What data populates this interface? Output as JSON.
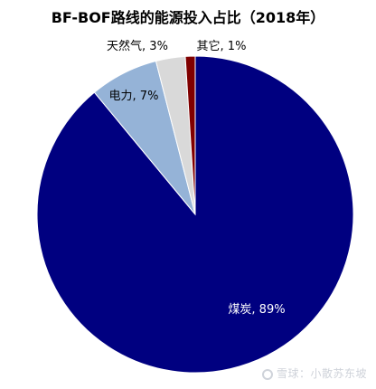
{
  "chart_data": {
    "type": "pie",
    "title": "BF-BOF路线的能源投入占比（2018年）",
    "start_angle_deg": 0,
    "direction": "clockwise",
    "slices": [
      {
        "label": "煤炭",
        "value": 89,
        "display": "煤炭, 89%",
        "color": "#000080",
        "label_color": "#ffffff"
      },
      {
        "label": "电力",
        "value": 7,
        "display": "电力, 7%",
        "color": "#95b3d7",
        "label_color": "#000000"
      },
      {
        "label": "天然气",
        "value": 3,
        "display": "天然气, 3%",
        "color": "#d9d9d9",
        "label_color": "#000000"
      },
      {
        "label": "其它",
        "value": 1,
        "display": "其它, 1%",
        "color": "#800000",
        "label_color": "#000000"
      }
    ]
  },
  "watermark": {
    "text": "雪球：小散苏东坡"
  }
}
